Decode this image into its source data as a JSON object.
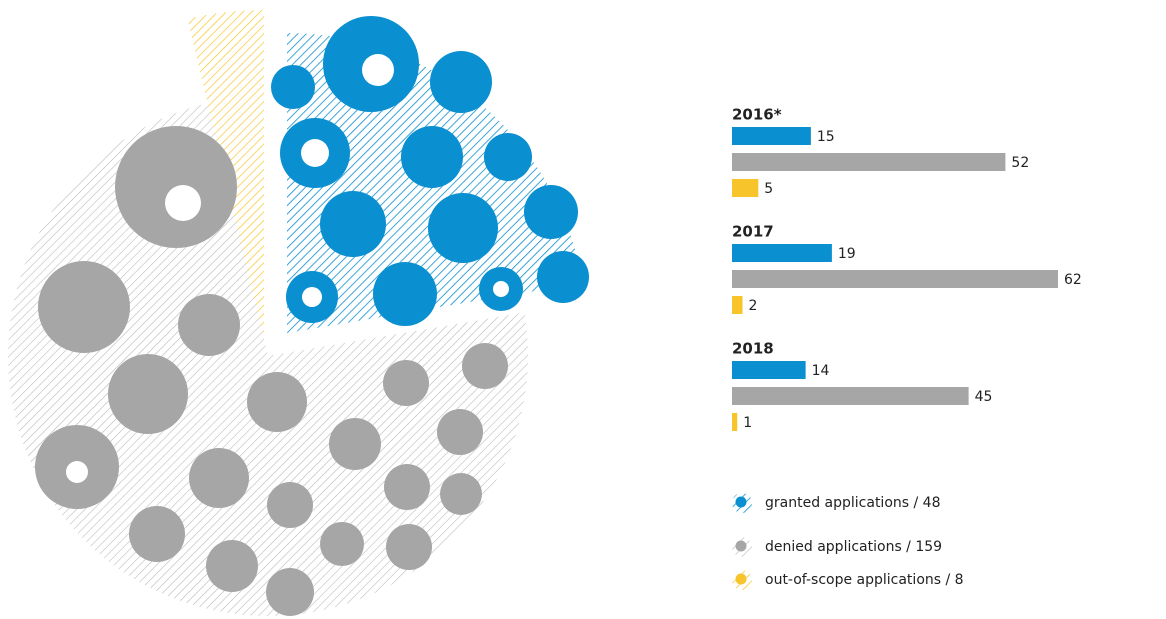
{
  "chart_data": [
    {
      "type": "bar",
      "categories": [
        "2016*",
        "2017",
        "2018"
      ],
      "series": [
        {
          "color": "#0a8fd0",
          "values": [
            15,
            19,
            14
          ]
        },
        {
          "color": "#a6a6a6",
          "values": [
            52,
            62,
            45
          ]
        },
        {
          "color": "#f7c52b",
          "values": [
            5,
            2,
            1
          ]
        }
      ]
    },
    {
      "type": "pie",
      "categories": [
        "granted applications / 48",
        "denied applications / 159",
        "out-of-scope applications / 8"
      ],
      "values": [
        48,
        159,
        8
      ],
      "colors": [
        "#0a8fd0",
        "#a6a6a6",
        "#f7c52b"
      ]
    }
  ]
}
